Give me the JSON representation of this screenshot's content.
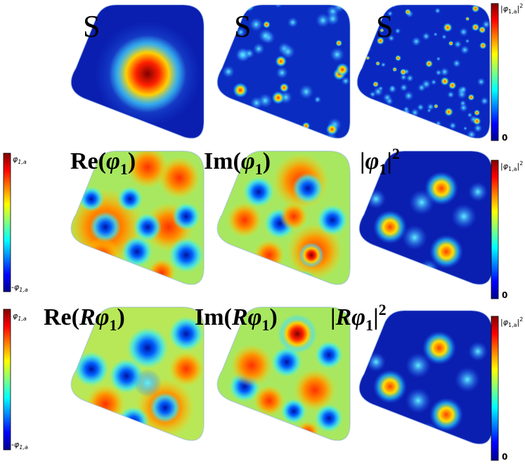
{
  "panels": [
    {
      "label": [
        "S"
      ]
    },
    {
      "label": [
        "S"
      ]
    },
    {
      "label": [
        "S"
      ]
    },
    {
      "label": [
        "Re(",
        "φ",
        "1",
        ")"
      ]
    },
    {
      "label": [
        "Im(",
        "φ",
        "1",
        ")"
      ]
    },
    {
      "label": [
        "|",
        "φ",
        "1",
        "|",
        "2"
      ]
    },
    {
      "label": [
        "Re(",
        "Rφ",
        "1",
        ")"
      ]
    },
    {
      "label": [
        "Im(",
        "Rφ",
        "1",
        ")"
      ]
    },
    {
      "label": [
        "|",
        "Rφ",
        "1",
        "|",
        "2"
      ]
    }
  ],
  "colorbars": [
    {
      "top": [
        "|",
        "φ",
        "1,a",
        "|",
        "2"
      ],
      "bottom": "0"
    },
    {
      "top": [
        "φ",
        "1,a"
      ],
      "bottom": [
        "-φ",
        "1,a"
      ]
    },
    {
      "top": [
        "|",
        "φ",
        "1,a",
        "|",
        "2"
      ],
      "bottom": "0"
    },
    {
      "top": [
        "φ",
        "1,a"
      ],
      "bottom": [
        "-φ",
        "1,a"
      ]
    },
    {
      "top": [
        "|",
        "φ",
        "1,a",
        "|",
        "2"
      ],
      "bottom": "0"
    }
  ]
}
